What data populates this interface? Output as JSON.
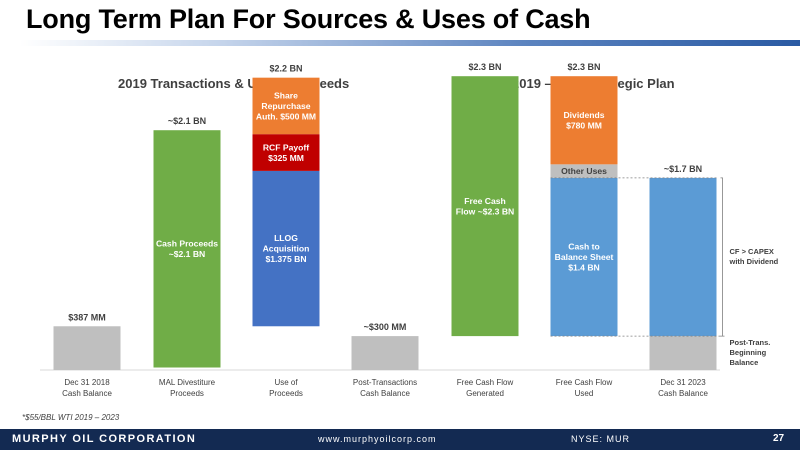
{
  "slide": {
    "title": "Long Term Plan For Sources & Uses of Cash",
    "footnote": "*$55/BBL WTI 2019 – 2023",
    "page_number": "27"
  },
  "footer": {
    "company": "MURPHY OIL CORPORATION",
    "website": "www.murphyoilcorp.com",
    "ticker": "NYSE: MUR"
  },
  "colors": {
    "green": "#70ad47",
    "orange": "#ed7d31",
    "red": "#c00000",
    "blue_dark": "#4472c4",
    "blue_light": "#5b9bd5",
    "gray": "#bfbfbf",
    "footer_navy": "#132a52"
  },
  "chart_data": {
    "type": "bar",
    "subtype": "waterfall",
    "unit": "$ BN",
    "panels": [
      {
        "title": "2019 Transactions & Use of Proceeds",
        "categories": [
          "Dec 31 2018 Cash Balance",
          "MAL Divestiture Proceeds",
          "Use of Proceeds",
          "Post-Transactions Cash Balance"
        ]
      },
      {
        "title": "2019 – 2023 Strategic Plan",
        "categories": [
          "Free Cash Flow Generated",
          "Free Cash Flow Used",
          "Dec 31 2023 Cash Balance"
        ]
      }
    ],
    "columns": [
      {
        "category": "Dec 31 2018 Cash Balance",
        "total_label": "$387 MM",
        "segments": [
          {
            "name": "Cash Balance",
            "value": 0.387,
            "base": 0,
            "color": "gray",
            "label": ""
          }
        ]
      },
      {
        "category": "MAL Divestiture Proceeds",
        "total_label": "~$2.1 BN",
        "segments": [
          {
            "name": "Cash Proceeds",
            "value": 2.1,
            "base": 0.022,
            "color": "green",
            "label": "Cash Proceeds ~$2.1 BN"
          }
        ]
      },
      {
        "category": "Use of Proceeds",
        "total_label": "$2.2 BN",
        "segments": [
          {
            "name": "LLOG Acquisition",
            "value": 1.375,
            "base": 0.387,
            "color": "blue_dark",
            "label": "LLOG Acquisition $1.375 BN"
          },
          {
            "name": "RCF Payoff",
            "value": 0.325,
            "base": 1.762,
            "color": "red",
            "label": "RCF Payoff $325 MM"
          },
          {
            "name": "Share Repurchase Auth.",
            "value": 0.5,
            "base": 2.087,
            "color": "orange",
            "label": "Share Repurchase Auth. $500 MM"
          }
        ]
      },
      {
        "category": "Post-Transactions Cash Balance",
        "total_label": "~$300 MM",
        "segments": [
          {
            "name": "Cash Balance",
            "value": 0.3,
            "base": 0,
            "color": "gray",
            "label": ""
          }
        ]
      },
      {
        "category": "Free Cash Flow Generated",
        "total_label": "$2.3 BN",
        "segments": [
          {
            "name": "Free Cash Flow",
            "value": 2.3,
            "base": 0.3,
            "color": "green",
            "label": "Free Cash Flow ~$2.3 BN"
          }
        ]
      },
      {
        "category": "Free Cash Flow Used",
        "total_label": "$2.3 BN",
        "segments": [
          {
            "name": "Cash to Balance Sheet",
            "value": 1.4,
            "base": 0.3,
            "color": "blue_light",
            "label": "Cash to Balance Sheet $1.4 BN"
          },
          {
            "name": "Other Uses",
            "value": 0.12,
            "base": 1.7,
            "color": "gray",
            "label": "Other Uses"
          },
          {
            "name": "Dividends",
            "value": 0.78,
            "base": 1.82,
            "color": "orange",
            "label": "Dividends $780 MM"
          }
        ]
      },
      {
        "category": "Dec 31 2023 Cash Balance",
        "total_label": "~$1.7 BN",
        "segments": [
          {
            "name": "Post-Trans. Beginning Balance",
            "value": 0.3,
            "base": 0,
            "color": "gray",
            "label": ""
          },
          {
            "name": "CF > CAPEX with Dividend",
            "value": 1.4,
            "base": 0.3,
            "color": "blue_light",
            "label": ""
          }
        ]
      }
    ],
    "annotations": [
      "CF > CAPEX with Dividend",
      "Post-Trans. Beginning Balance"
    ]
  }
}
